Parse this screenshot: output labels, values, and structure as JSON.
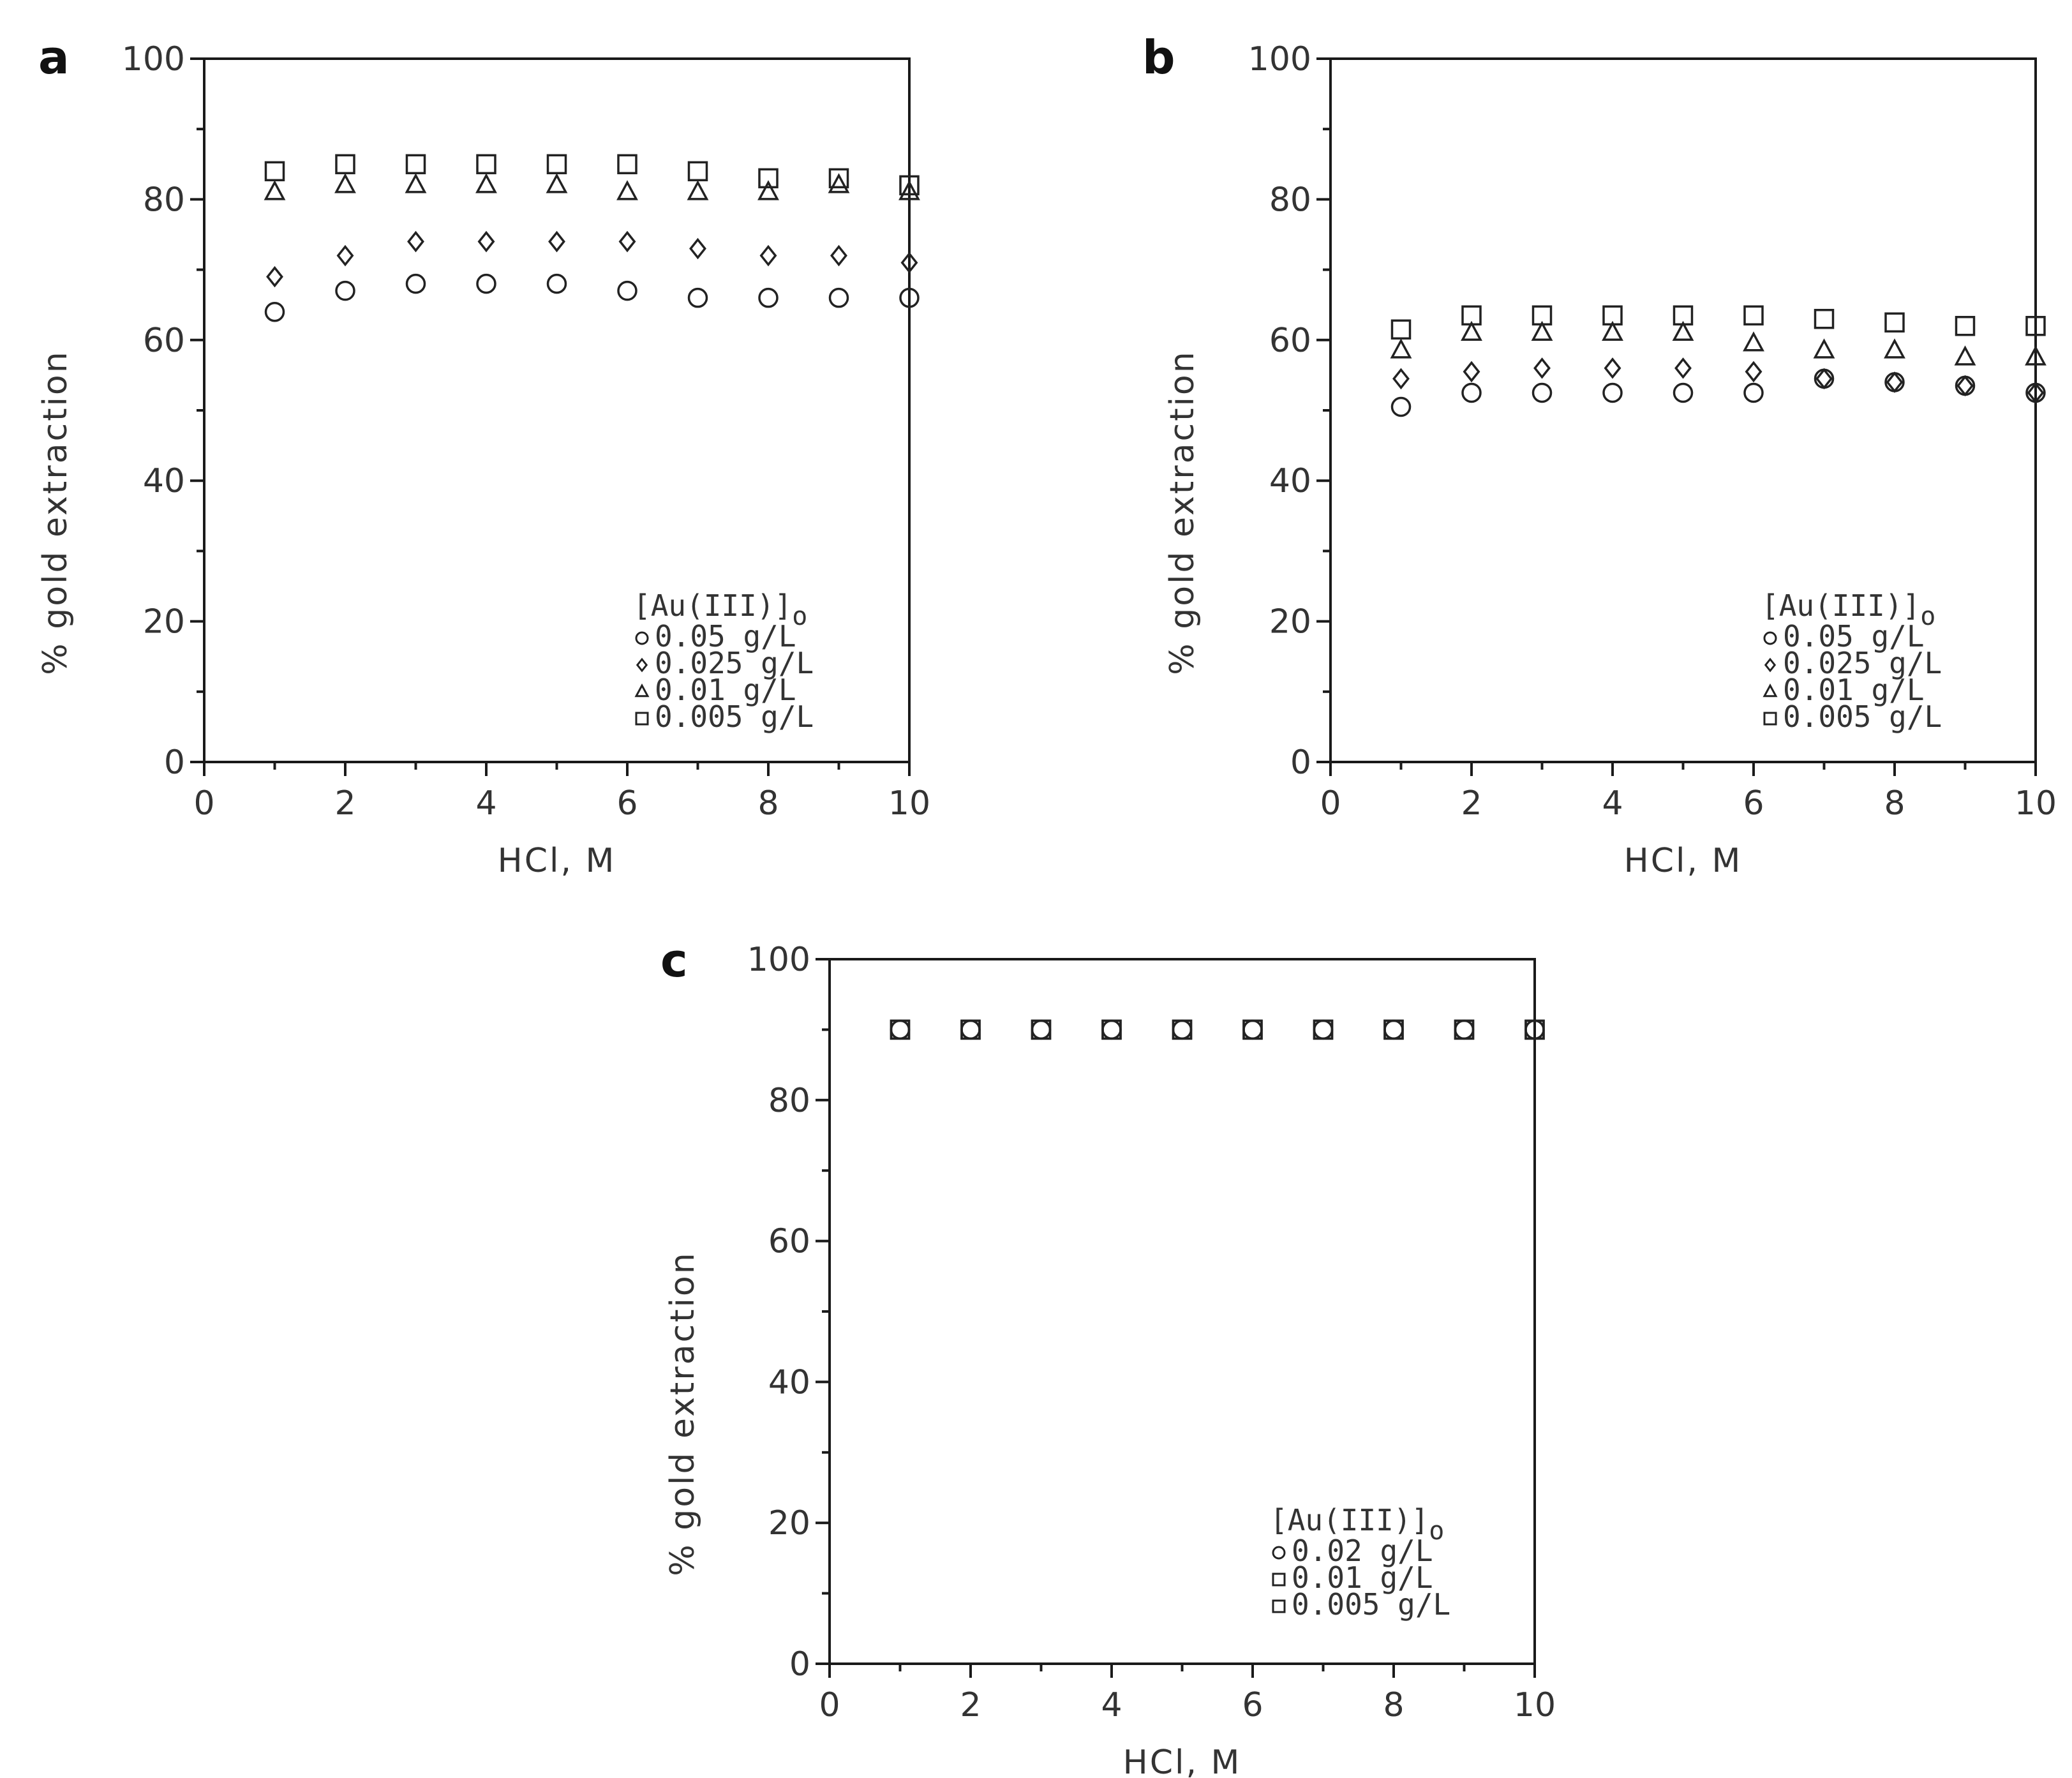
{
  "chart_data": [
    {
      "panel": "a",
      "type": "scatter",
      "xlabel": "HCl,  M",
      "ylabel": "% gold extraction",
      "xlim": [
        0,
        10
      ],
      "ylim": [
        0,
        100
      ],
      "xticks": [
        "0",
        "2",
        "4",
        "6",
        "8",
        "10"
      ],
      "yticks": [
        "0",
        "20",
        "40",
        "60",
        "80",
        "100"
      ],
      "legend_title": "[Au(III)]o",
      "legend_placement": "bottom-right",
      "x": [
        1,
        2,
        3,
        4,
        5,
        6,
        7,
        8,
        9,
        10
      ],
      "series": [
        {
          "name": "0.05  g/L",
          "marker": "circle",
          "values": [
            64,
            67,
            68,
            68,
            68,
            67,
            66,
            66,
            66,
            66
          ]
        },
        {
          "name": "0.025  g/L",
          "marker": "diamond",
          "values": [
            69,
            72,
            74,
            74,
            74,
            74,
            73,
            72,
            72,
            71
          ]
        },
        {
          "name": "0.01  g/L",
          "marker": "triangle",
          "values": [
            81,
            82,
            82,
            82,
            82,
            81,
            81,
            81,
            82,
            81
          ]
        },
        {
          "name": "0.005  g/L",
          "marker": "square",
          "values": [
            84,
            85,
            85,
            85,
            85,
            85,
            84,
            83,
            83,
            82
          ]
        }
      ]
    },
    {
      "panel": "b",
      "type": "scatter",
      "xlabel": "HCl,  M",
      "ylabel": "% gold extraction",
      "xlim": [
        0,
        10
      ],
      "ylim": [
        0,
        100
      ],
      "xticks": [
        "0",
        "2",
        "4",
        "6",
        "8",
        "10"
      ],
      "yticks": [
        "0",
        "20",
        "40",
        "60",
        "80",
        "100"
      ],
      "legend_title": "[Au(III)]o",
      "legend_placement": "bottom-right",
      "x": [
        1,
        2,
        3,
        4,
        5,
        6,
        7,
        8,
        9,
        10
      ],
      "series": [
        {
          "name": "0.05  g/L",
          "marker": "circle",
          "values": [
            50.5,
            52.5,
            52.5,
            52.5,
            52.5,
            52.5,
            54.5,
            54,
            53.5,
            52.5
          ]
        },
        {
          "name": "0.025  g/L",
          "marker": "diamond",
          "values": [
            54.5,
            55.5,
            56,
            56,
            56,
            55.5,
            54.5,
            54,
            53.5,
            52.5
          ]
        },
        {
          "name": "0.01  g/L",
          "marker": "triangle",
          "values": [
            58.5,
            61,
            61,
            61,
            61,
            59.5,
            58.5,
            58.5,
            57.5,
            57.5
          ]
        },
        {
          "name": "0.005  g/L",
          "marker": "square",
          "values": [
            61.5,
            63.5,
            63.5,
            63.5,
            63.5,
            63.5,
            63,
            62.5,
            62,
            62
          ]
        }
      ]
    },
    {
      "panel": "c",
      "type": "scatter",
      "xlabel": "HCl,  M",
      "ylabel": "% gold extraction",
      "xlim": [
        0,
        10
      ],
      "ylim": [
        0,
        100
      ],
      "xticks": [
        "0",
        "2",
        "4",
        "6",
        "8",
        "10"
      ],
      "yticks": [
        "0",
        "20",
        "40",
        "60",
        "80",
        "100"
      ],
      "legend_title": "[Au(III)]o",
      "legend_placement": "bottom-right",
      "x": [
        1,
        2,
        3,
        4,
        5,
        6,
        7,
        8,
        9,
        10
      ],
      "series": [
        {
          "name": "0.02  g/L",
          "marker": "circle",
          "values": [
            90,
            90,
            90,
            90,
            90,
            90,
            90,
            90,
            90,
            90
          ]
        },
        {
          "name": "0.01  g/L",
          "marker": "square",
          "values": [
            90,
            90,
            90,
            90,
            90,
            90,
            90,
            90,
            90,
            90
          ]
        },
        {
          "name": "0.005  g/L",
          "marker": "square",
          "values": [
            90,
            90,
            90,
            90,
            90,
            90,
            90,
            90,
            90,
            90
          ]
        }
      ]
    }
  ]
}
